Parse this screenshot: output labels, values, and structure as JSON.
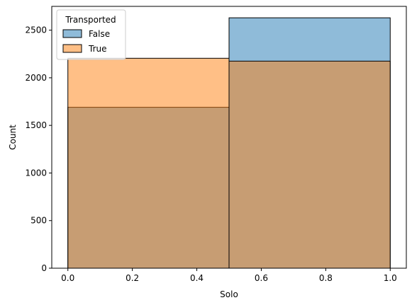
{
  "chart_data": {
    "type": "bar",
    "histogram": true,
    "title": "",
    "xlabel": "Solo",
    "ylabel": "Count",
    "xlim": [
      -0.05,
      1.05
    ],
    "ylim": [
      0,
      2750
    ],
    "xticks": [
      "0.0",
      "0.2",
      "0.4",
      "0.6",
      "0.8",
      "1.0"
    ],
    "yticks": [
      "0",
      "500",
      "1000",
      "1500",
      "2000",
      "2500"
    ],
    "bins": [
      [
        0.0,
        0.5
      ],
      [
        0.5,
        1.0
      ]
    ],
    "legend": {
      "title": "Transported",
      "placement": "top-left"
    },
    "series": [
      {
        "name": "False",
        "values": [
          1690,
          2630
        ],
        "color": "#1f77b4",
        "alpha": 0.5
      },
      {
        "name": "True",
        "values": [
          2205,
          2175
        ],
        "color": "#ff7f0e",
        "alpha": 0.5
      }
    ],
    "grid": false
  }
}
